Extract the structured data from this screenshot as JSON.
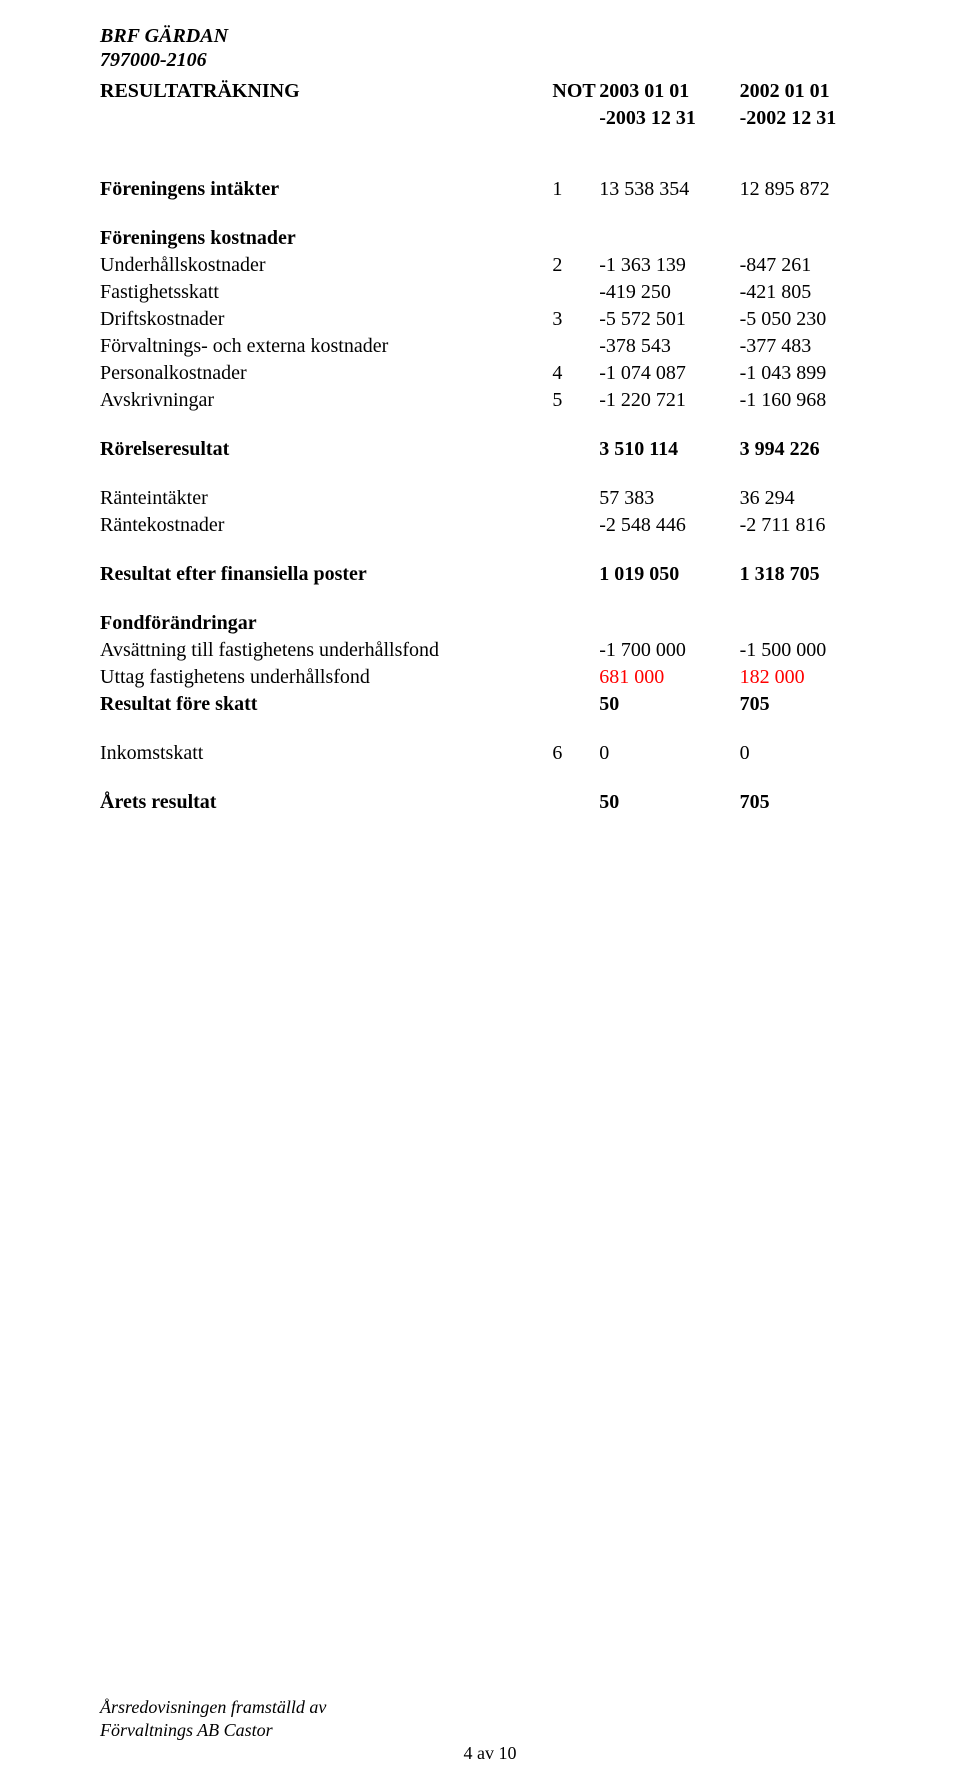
{
  "header": {
    "org_name": "BRF GÄRDAN",
    "org_number": "797000-2106"
  },
  "columns": {
    "title": "RESULTATRÄKNING",
    "not_label": "NOT",
    "period1_line1": "2003 01 01",
    "period1_line2": "-2003 12 31",
    "period2_line1": "2002 01 01",
    "period2_line2": "-2002 12 31"
  },
  "rows": {
    "intakter_hdr": "Föreningens intäkter",
    "intakter_not": "1",
    "intakter_y1": "13 538 354",
    "intakter_y2": "12 895 872",
    "kostnader_hdr": "Föreningens kostnader",
    "underhall_label": "Underhållskostnader",
    "underhall_not": "2",
    "underhall_y1": "-1 363 139",
    "underhall_y2": "-847 261",
    "fastskatt_label": "Fastighetsskatt",
    "fastskatt_y1": "-419 250",
    "fastskatt_y2": "-421 805",
    "drift_label": "Driftskostnader",
    "drift_not": "3",
    "drift_y1": "-5 572 501",
    "drift_y2": "-5 050 230",
    "forvalt_label": "Förvaltnings- och externa kostnader",
    "forvalt_y1": "-378 543",
    "forvalt_y2": "-377 483",
    "personal_label": "Personalkostnader",
    "personal_not": "4",
    "personal_y1": "-1 074 087",
    "personal_y2": "-1 043 899",
    "avskriv_label": "Avskrivningar",
    "avskriv_not": "5",
    "avskriv_y1": "-1 220 721",
    "avskriv_y2": "-1 160 968",
    "rorelse_label": "Rörelseresultat",
    "rorelse_y1": "3 510 114",
    "rorelse_y2": "3 994 226",
    "ranteint_label": "Ränteintäkter",
    "ranteint_y1": "57 383",
    "ranteint_y2": "36 294",
    "rantekost_label": "Räntekostnader",
    "rantekost_y1": "-2 548 446",
    "rantekost_y2": "-2 711 816",
    "resfin_label": "Resultat efter finansiella poster",
    "resfin_y1": "1 019 050",
    "resfin_y2": "1 318 705",
    "fondfor_hdr": "Fondförändringar",
    "avsatt_label": "Avsättning till fastighetens underhållsfond",
    "avsatt_y1": "-1 700 000",
    "avsatt_y2": "-1 500 000",
    "uttag_label": "Uttag fastighetens underhållsfond",
    "uttag_y1": "681 000",
    "uttag_y2": "182 000",
    "resfore_label": "Resultat före skatt",
    "resfore_y1": "50",
    "resfore_y2": "705",
    "inkomst_label": "Inkomstskatt",
    "inkomst_not": "6",
    "inkomst_y1": "0",
    "inkomst_y2": "0",
    "arets_label": "Årets resultat",
    "arets_y1": "50",
    "arets_y2": "705"
  },
  "footer": {
    "line1": "Årsredovisningen framställd av",
    "line2": "Förvaltnings AB Castor",
    "page": "4 av 10"
  },
  "colors": {
    "text": "#000000",
    "highlight": "#ff0000",
    "background": "#ffffff"
  }
}
